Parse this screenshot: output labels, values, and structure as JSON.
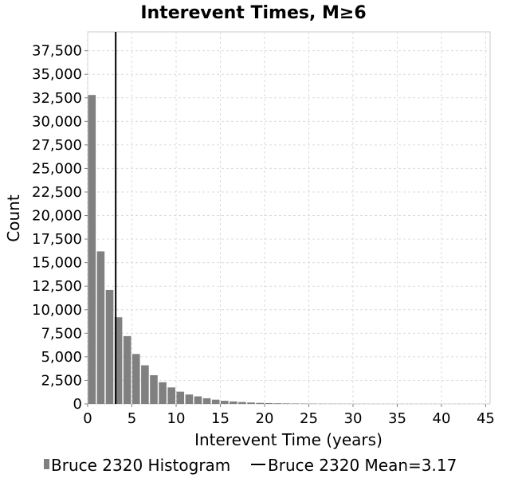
{
  "chart_data": {
    "type": "bar",
    "title": "Interevent Times, M≥6",
    "xlabel": "Interevent Time (years)",
    "ylabel": "Count",
    "xlim": [
      0,
      45.5
    ],
    "ylim": [
      0,
      39500
    ],
    "xticks": [
      0,
      5,
      10,
      15,
      20,
      25,
      30,
      35,
      40,
      45
    ],
    "xtick_labels": [
      "0",
      "5",
      "10",
      "15",
      "20",
      "25",
      "30",
      "35",
      "40",
      "45"
    ],
    "yticks": [
      0,
      2500,
      5000,
      7500,
      10000,
      12500,
      15000,
      17500,
      20000,
      22500,
      25000,
      27500,
      30000,
      32500,
      35000,
      37500
    ],
    "ytick_labels": [
      "0",
      "2,500",
      "5,000",
      "7,500",
      "10,000",
      "12,500",
      "15,000",
      "17,500",
      "20,000",
      "22,500",
      "25,000",
      "27,500",
      "30,000",
      "32,500",
      "35,000",
      "37,500"
    ],
    "grid": true,
    "bin_width": 1,
    "series": [
      {
        "name": "Bruce 2320 Histogram",
        "type": "histogram",
        "color": "#808080",
        "x": [
          0.5,
          1.5,
          2.5,
          3.5,
          4.5,
          5.5,
          6.5,
          7.5,
          8.5,
          9.5,
          10.5,
          11.5,
          12.5,
          13.5,
          14.5,
          15.5,
          16.5,
          17.5,
          18.5,
          19.5,
          20.5,
          21.5,
          22.5,
          23.5,
          24.5,
          25.5,
          26.5,
          27.5,
          28.5,
          29.5,
          30.5,
          31.5,
          32.5,
          33.5,
          34.5,
          35.5,
          36.5,
          37.5,
          38.5,
          39.5,
          40.5,
          41.5,
          42.5,
          43.5,
          44.5
        ],
        "values": [
          32800,
          16200,
          12100,
          9200,
          7200,
          5300,
          4100,
          3050,
          2300,
          1750,
          1300,
          1000,
          800,
          600,
          450,
          330,
          260,
          200,
          150,
          110,
          90,
          70,
          55,
          45,
          35,
          28,
          22,
          18,
          15,
          12,
          10,
          8,
          7,
          6,
          5,
          4,
          4,
          3,
          3,
          2,
          2,
          2,
          1,
          1,
          1
        ]
      },
      {
        "name": "Bruce 2320 Mean=3.17",
        "type": "vline",
        "color": "#000000",
        "x": 3.17
      }
    ],
    "legend_position": "bottom"
  }
}
